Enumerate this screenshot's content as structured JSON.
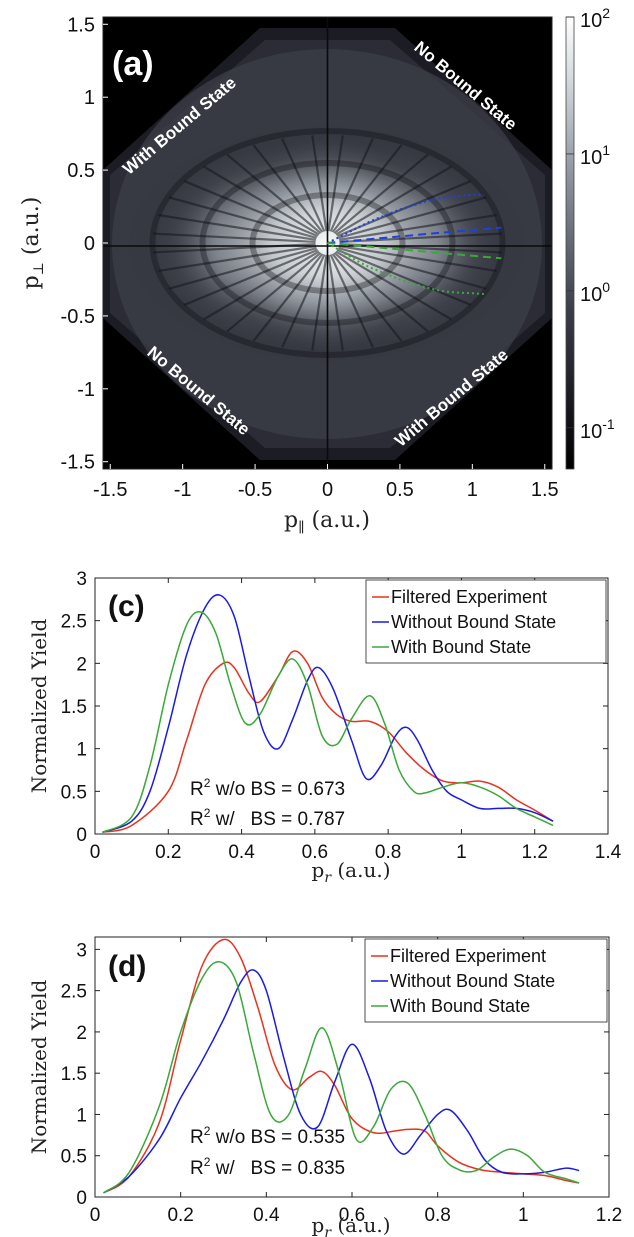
{
  "chart_data": [
    {
      "type": "heatmap",
      "panel_label": "(a)",
      "xlabel": "p",
      "xlabel_sub": "∥",
      "xlabel_unit": " (a.u.)",
      "ylabel": "p",
      "ylabel_sub": "⊥",
      "ylabel_unit": " (a.u.)",
      "xlim": [
        -1.55,
        1.55
      ],
      "ylim": [
        -1.55,
        1.55
      ],
      "xticks": [
        -1.5,
        -1,
        -0.5,
        0,
        0.5,
        1,
        1.5
      ],
      "xtick_labels": [
        "-1.5",
        "-1",
        "-0.5",
        "0",
        "0.5",
        "1",
        "1.5"
      ],
      "yticks": [
        1.5,
        1,
        0.5,
        0,
        -0.5,
        -1,
        -1.5
      ],
      "ytick_labels": [
        "1.5",
        "1",
        "0.5",
        "0",
        "-0.5",
        "-1",
        "-1.5"
      ],
      "colorbar": {
        "scale": "log",
        "range": [
          0.05,
          100
        ],
        "ticks": [
          {
            "base": "10",
            "exp": "2",
            "value": 100
          },
          {
            "base": "10",
            "exp": "1",
            "value": 10
          },
          {
            "base": "10",
            "exp": "0",
            "value": 1
          },
          {
            "base": "10",
            "exp": "-1",
            "value": 0.1
          }
        ],
        "low_color": "#000000",
        "high_color": "#ffffff"
      },
      "region_labels": [
        {
          "text": "With Bound State",
          "quadrant": "top-left"
        },
        {
          "text": "No Bound State",
          "quadrant": "top-right"
        },
        {
          "text": "No Bound State",
          "quadrant": "bottom-left"
        },
        {
          "text": "With Bound State",
          "quadrant": "bottom-right"
        }
      ],
      "overlay_curves": [
        {
          "style": "dotted",
          "color": "#1f3fe0",
          "x": [
            0,
            0.1,
            0.2,
            0.3,
            0.4,
            0.5,
            0.6,
            0.7,
            0.8,
            0.9,
            1.0,
            1.08
          ],
          "y": [
            0,
            0.05,
            0.1,
            0.15,
            0.19,
            0.23,
            0.26,
            0.29,
            0.31,
            0.32,
            0.33,
            0.33
          ]
        },
        {
          "style": "dashed",
          "color": "#1f3fe0",
          "x": [
            0,
            0.4,
            0.8,
            1.2
          ],
          "y": [
            0,
            0.036,
            0.072,
            0.105
          ]
        },
        {
          "style": "dashed",
          "color": "#3aa838",
          "x": [
            0,
            0.4,
            0.8,
            1.2
          ],
          "y": [
            0,
            -0.035,
            -0.07,
            -0.105
          ]
        },
        {
          "style": "dotted",
          "color": "#3aa838",
          "x": [
            0,
            0.1,
            0.2,
            0.3,
            0.4,
            0.5,
            0.6,
            0.7,
            0.8,
            0.9,
            1.0,
            1.08
          ],
          "y": [
            0,
            -0.06,
            -0.12,
            -0.17,
            -0.21,
            -0.25,
            -0.28,
            -0.31,
            -0.33,
            -0.34,
            -0.345,
            -0.35
          ]
        }
      ]
    },
    {
      "type": "line",
      "panel_label": "(c)",
      "xlabel": "p",
      "xlabel_sub": "r",
      "xlabel_unit": " (a.u.)",
      "ylabel": "Normalized Yield",
      "xlim": [
        0,
        1.4
      ],
      "ylim": [
        0,
        3
      ],
      "xticks": [
        0,
        0.2,
        0.4,
        0.6,
        0.8,
        1,
        1.2,
        1.4
      ],
      "xtick_labels": [
        "0",
        "0.2",
        "0.4",
        "0.6",
        "0.8",
        "1",
        "1.2",
        "1.4"
      ],
      "yticks": [
        0,
        0.5,
        1,
        1.5,
        2,
        2.5,
        3
      ],
      "ytick_labels": [
        "0",
        "0.5",
        "1",
        "1.5",
        "2",
        "2.5",
        "3"
      ],
      "legend_position": "top-right",
      "series": [
        {
          "name": "Filtered Experiment",
          "color": "#e8321e",
          "x": [
            0.02,
            0.1,
            0.2,
            0.25,
            0.3,
            0.35,
            0.38,
            0.42,
            0.45,
            0.5,
            0.54,
            0.58,
            0.62,
            0.66,
            0.7,
            0.75,
            0.8,
            0.85,
            0.9,
            0.95,
            1.0,
            1.05,
            1.1,
            1.15,
            1.2,
            1.25
          ],
          "y": [
            0.02,
            0.1,
            0.5,
            1.1,
            1.75,
            2.0,
            1.95,
            1.65,
            1.55,
            1.85,
            2.14,
            2.0,
            1.6,
            1.4,
            1.32,
            1.32,
            1.2,
            0.95,
            0.75,
            0.62,
            0.6,
            0.62,
            0.55,
            0.4,
            0.28,
            0.15
          ]
        },
        {
          "name": "Without Bound State",
          "color": "#1a1ae6",
          "x": [
            0.02,
            0.1,
            0.15,
            0.2,
            0.25,
            0.3,
            0.34,
            0.38,
            0.42,
            0.46,
            0.5,
            0.54,
            0.58,
            0.61,
            0.65,
            0.7,
            0.74,
            0.78,
            0.82,
            0.85,
            0.88,
            0.92,
            0.96,
            1.0,
            1.05,
            1.1,
            1.15,
            1.2,
            1.25
          ],
          "y": [
            0.02,
            0.15,
            0.5,
            1.25,
            2.1,
            2.65,
            2.8,
            2.55,
            1.85,
            1.2,
            1.0,
            1.35,
            1.8,
            1.95,
            1.7,
            1.1,
            0.65,
            0.8,
            1.15,
            1.25,
            1.1,
            0.75,
            0.5,
            0.4,
            0.3,
            0.3,
            0.3,
            0.25,
            0.15
          ]
        },
        {
          "name": "With Bound State",
          "color": "#3aa838",
          "x": [
            0.02,
            0.1,
            0.15,
            0.2,
            0.25,
            0.29,
            0.33,
            0.37,
            0.41,
            0.45,
            0.5,
            0.54,
            0.58,
            0.62,
            0.66,
            0.7,
            0.75,
            0.79,
            0.83,
            0.87,
            0.9,
            0.95,
            1.0,
            1.05,
            1.1,
            1.15,
            1.2,
            1.25
          ],
          "y": [
            0.02,
            0.2,
            0.8,
            1.75,
            2.45,
            2.6,
            2.35,
            1.75,
            1.3,
            1.4,
            1.85,
            2.05,
            1.75,
            1.15,
            1.05,
            1.35,
            1.62,
            1.3,
            0.75,
            0.5,
            0.48,
            0.55,
            0.6,
            0.55,
            0.45,
            0.3,
            0.2,
            0.1
          ]
        }
      ],
      "annotations": [
        {
          "prefix": "R",
          "sup": "2",
          "text": " w/o BS = 0.673"
        },
        {
          "prefix": "R",
          "sup": "2",
          "text": " w/   BS = 0.787"
        }
      ]
    },
    {
      "type": "line",
      "panel_label": "(d)",
      "xlabel": "p",
      "xlabel_sub": "r",
      "xlabel_unit": " (a.u.)",
      "ylabel": "Normalized Yield",
      "xlim": [
        0,
        1.2
      ],
      "ylim": [
        0,
        3.15
      ],
      "xticks": [
        0,
        0.2,
        0.4,
        0.6,
        0.8,
        1,
        1.2
      ],
      "xtick_labels": [
        "0",
        "0.2",
        "0.4",
        "0.6",
        "0.8",
        "1",
        "1.2"
      ],
      "yticks": [
        0,
        0.5,
        1,
        1.5,
        2,
        2.5,
        3
      ],
      "ytick_labels": [
        "0",
        "0.5",
        "1",
        "1.5",
        "2",
        "2.5",
        "3"
      ],
      "legend_position": "top-right",
      "series": [
        {
          "name": "Filtered Experiment",
          "color": "#e8321e",
          "x": [
            0.02,
            0.08,
            0.15,
            0.2,
            0.25,
            0.3,
            0.34,
            0.38,
            0.42,
            0.46,
            0.5,
            0.53,
            0.56,
            0.6,
            0.65,
            0.7,
            0.73,
            0.77,
            0.8,
            0.85,
            0.9,
            0.95,
            1.0,
            1.05,
            1.1,
            1.13
          ],
          "y": [
            0.05,
            0.25,
            0.9,
            1.9,
            2.8,
            3.12,
            2.9,
            2.3,
            1.6,
            1.3,
            1.45,
            1.52,
            1.35,
            0.95,
            0.78,
            0.8,
            0.82,
            0.8,
            0.62,
            0.42,
            0.33,
            0.3,
            0.28,
            0.26,
            0.2,
            0.17
          ]
        },
        {
          "name": "Without Bound State",
          "color": "#1a1ae6",
          "x": [
            0.02,
            0.08,
            0.15,
            0.2,
            0.25,
            0.3,
            0.34,
            0.37,
            0.4,
            0.44,
            0.48,
            0.52,
            0.56,
            0.6,
            0.64,
            0.68,
            0.72,
            0.76,
            0.8,
            0.83,
            0.87,
            0.91,
            0.95,
            1.0,
            1.05,
            1.1,
            1.13
          ],
          "y": [
            0.05,
            0.25,
            0.7,
            1.2,
            1.65,
            2.15,
            2.6,
            2.75,
            2.5,
            1.7,
            1.0,
            0.85,
            1.4,
            1.85,
            1.45,
            0.8,
            0.52,
            0.75,
            1.0,
            1.05,
            0.8,
            0.45,
            0.3,
            0.28,
            0.3,
            0.35,
            0.32
          ]
        },
        {
          "name": "With Bound State",
          "color": "#3aa838",
          "x": [
            0.02,
            0.08,
            0.15,
            0.2,
            0.25,
            0.29,
            0.33,
            0.37,
            0.41,
            0.45,
            0.49,
            0.53,
            0.57,
            0.61,
            0.65,
            0.69,
            0.73,
            0.77,
            0.81,
            0.85,
            0.89,
            0.93,
            0.97,
            1.01,
            1.05,
            1.1,
            1.13
          ],
          "y": [
            0.05,
            0.3,
            1.1,
            2.0,
            2.65,
            2.85,
            2.6,
            1.75,
            1.0,
            0.98,
            1.55,
            2.05,
            1.5,
            0.7,
            0.85,
            1.3,
            1.38,
            1.0,
            0.5,
            0.33,
            0.32,
            0.48,
            0.58,
            0.5,
            0.3,
            0.22,
            0.17
          ]
        }
      ],
      "annotations": [
        {
          "prefix": "R",
          "sup": "2",
          "text": " w/o BS = 0.535"
        },
        {
          "prefix": "R",
          "sup": "2",
          "text": " w/   BS = 0.835"
        }
      ]
    }
  ]
}
